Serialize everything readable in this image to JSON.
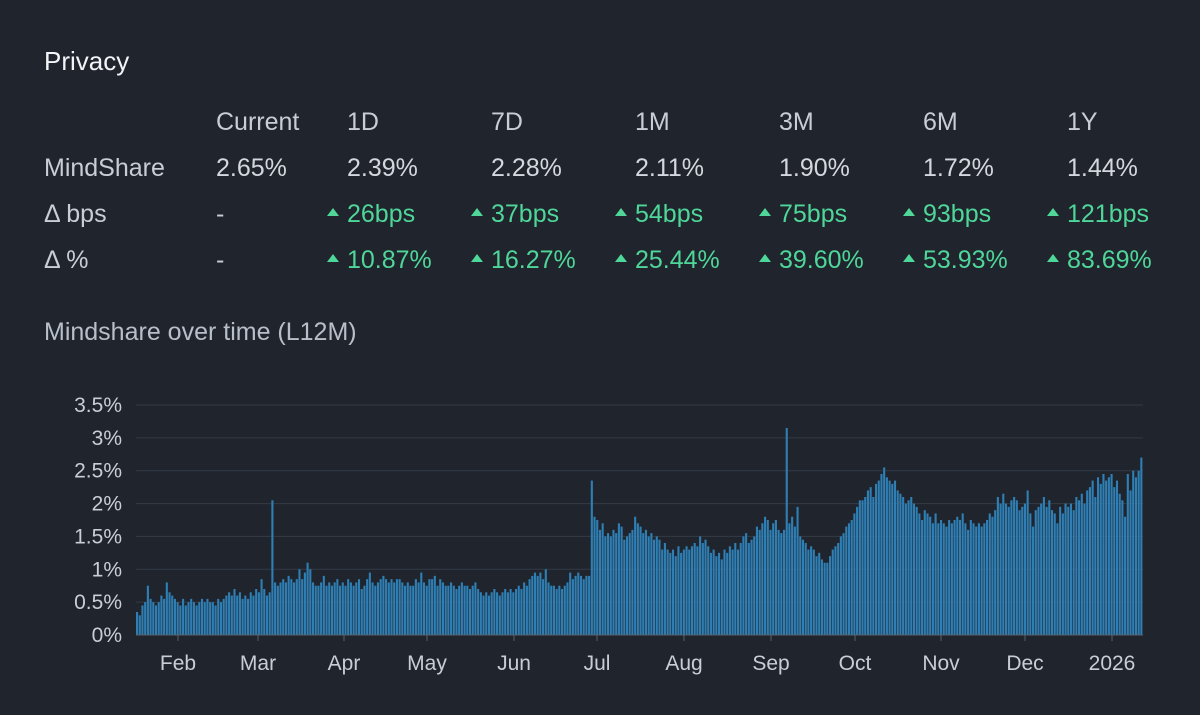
{
  "title": "Privacy",
  "table": {
    "columns": [
      "Current",
      "1D",
      "7D",
      "1M",
      "3M",
      "6M",
      "1Y"
    ],
    "rows": [
      {
        "label": "MindShare",
        "values": [
          "2.65%",
          "2.39%",
          "2.28%",
          "2.11%",
          "1.90%",
          "1.72%",
          "1.44%"
        ],
        "direction": [
          "",
          "",
          "",
          "",
          "",
          "",
          ""
        ]
      },
      {
        "label": "Δ bps",
        "values": [
          "-",
          "26bps",
          "37bps",
          "54bps",
          "75bps",
          "93bps",
          "121bps"
        ],
        "direction": [
          "",
          "up",
          "up",
          "up",
          "up",
          "up",
          "up"
        ]
      },
      {
        "label": "Δ %",
        "values": [
          "-",
          "10.87%",
          "16.27%",
          "25.44%",
          "39.60%",
          "53.93%",
          "83.69%"
        ],
        "direction": [
          "",
          "up",
          "up",
          "up",
          "up",
          "up",
          "up"
        ]
      }
    ],
    "up_color": "#4fd699"
  },
  "chart_title": "Mindshare over time (L12M)",
  "chart_data": {
    "type": "bar",
    "title": "Mindshare over time (L12M)",
    "xlabel": "",
    "ylabel": "",
    "ylim": [
      0,
      3.5
    ],
    "y_ticks": [
      "0%",
      "0.5%",
      "1%",
      "1.5%",
      "2%",
      "2.5%",
      "3%",
      "3.5%"
    ],
    "x_ticks": [
      "Feb",
      "Mar",
      "Apr",
      "May",
      "Jun",
      "Jul",
      "Aug",
      "Sep",
      "Oct",
      "Nov",
      "Dec",
      "2026"
    ],
    "grid": true,
    "bar_color": "#2f7fb4",
    "interval": "daily",
    "series": [
      {
        "values": [
          0.35,
          0.3,
          0.45,
          0.5,
          0.75,
          0.55,
          0.5,
          0.45,
          0.5,
          0.6,
          0.55,
          0.8,
          0.65,
          0.6,
          0.55,
          0.5,
          0.45,
          0.55,
          0.45,
          0.5,
          0.55,
          0.5,
          0.45,
          0.5,
          0.55,
          0.5,
          0.55,
          0.5,
          0.5,
          0.45,
          0.55,
          0.5,
          0.55,
          0.6,
          0.65,
          0.6,
          0.7,
          0.6,
          0.65,
          0.55,
          0.6,
          0.55,
          0.65,
          0.6,
          0.7,
          0.65,
          0.85,
          0.7,
          0.6,
          0.65,
          2.05,
          0.8,
          0.75,
          0.8,
          0.85,
          0.8,
          0.9,
          0.85,
          0.8,
          0.85,
          1.0,
          0.85,
          0.95,
          1.1,
          1.0,
          0.8,
          0.75,
          0.75,
          0.8,
          0.9,
          0.75,
          0.8,
          0.75,
          0.8,
          0.85,
          0.75,
          0.8,
          0.75,
          0.85,
          0.8,
          0.75,
          0.8,
          0.85,
          0.7,
          0.75,
          0.85,
          0.95,
          0.8,
          0.75,
          0.8,
          0.85,
          0.9,
          0.85,
          0.8,
          0.85,
          0.8,
          0.85,
          0.85,
          0.8,
          0.75,
          0.8,
          0.75,
          0.75,
          0.85,
          0.8,
          0.95,
          0.8,
          0.75,
          0.85,
          0.85,
          0.9,
          0.75,
          0.85,
          0.8,
          0.75,
          0.75,
          0.8,
          0.75,
          0.7,
          0.75,
          0.8,
          0.75,
          0.75,
          0.7,
          0.75,
          0.8,
          0.7,
          0.65,
          0.6,
          0.65,
          0.6,
          0.65,
          0.7,
          0.65,
          0.6,
          0.65,
          0.7,
          0.65,
          0.7,
          0.65,
          0.7,
          0.75,
          0.7,
          0.8,
          0.75,
          0.85,
          0.9,
          0.95,
          0.9,
          0.95,
          0.85,
          1.0,
          0.8,
          0.75,
          0.75,
          0.7,
          0.75,
          0.7,
          0.75,
          0.8,
          0.95,
          0.85,
          0.9,
          0.95,
          0.9,
          0.85,
          0.9,
          0.9,
          2.35,
          1.8,
          1.75,
          1.6,
          1.7,
          1.5,
          1.55,
          1.5,
          1.6,
          1.55,
          1.7,
          1.65,
          1.45,
          1.5,
          1.55,
          1.6,
          1.8,
          1.7,
          1.65,
          1.55,
          1.6,
          1.5,
          1.55,
          1.45,
          1.5,
          1.45,
          1.3,
          1.4,
          1.3,
          1.25,
          1.3,
          1.2,
          1.35,
          1.25,
          1.3,
          1.35,
          1.3,
          1.35,
          1.4,
          1.35,
          1.5,
          1.4,
          1.45,
          1.35,
          1.25,
          1.3,
          1.2,
          1.25,
          1.15,
          1.3,
          1.25,
          1.35,
          1.3,
          1.4,
          1.3,
          1.4,
          1.5,
          1.55,
          1.4,
          1.45,
          1.5,
          1.65,
          1.6,
          1.7,
          1.8,
          1.75,
          1.6,
          1.7,
          1.75,
          1.6,
          1.55,
          1.6,
          3.15,
          1.7,
          1.8,
          1.65,
          1.95,
          1.5,
          1.45,
          1.4,
          1.3,
          1.35,
          1.3,
          1.2,
          1.25,
          1.15,
          1.1,
          1.1,
          1.2,
          1.3,
          1.35,
          1.4,
          1.5,
          1.55,
          1.65,
          1.7,
          1.75,
          1.85,
          1.95,
          2.05,
          2.05,
          2.1,
          2.2,
          2.25,
          2.1,
          2.3,
          2.35,
          2.45,
          2.55,
          2.4,
          2.35,
          2.3,
          2.35,
          2.2,
          2.15,
          2.1,
          2.0,
          2.05,
          2.1,
          2.0,
          1.95,
          1.85,
          1.75,
          1.9,
          1.85,
          1.8,
          1.7,
          1.85,
          1.7,
          1.75,
          1.7,
          1.65,
          1.75,
          1.7,
          1.75,
          1.8,
          1.75,
          1.85,
          1.7,
          1.6,
          1.75,
          1.7,
          1.65,
          1.7,
          1.65,
          1.7,
          1.75,
          1.85,
          1.8,
          1.9,
          2.1,
          2.0,
          2.15,
          2.0,
          1.95,
          2.05,
          2.1,
          2.05,
          1.9,
          1.95,
          2.0,
          2.2,
          1.85,
          1.65,
          1.9,
          1.95,
          2.0,
          2.1,
          1.95,
          2.05,
          1.9,
          1.85,
          1.7,
          1.95,
          1.85,
          2.0,
          1.95,
          2.0,
          1.9,
          2.1,
          2.05,
          2.15,
          2.0,
          2.2,
          2.25,
          2.35,
          2.1,
          2.4,
          2.3,
          2.45,
          2.35,
          2.4,
          2.45,
          2.25,
          2.35,
          2.15,
          2.05,
          1.8,
          2.45,
          2.2,
          2.5,
          2.4,
          2.5,
          2.7
        ]
      }
    ]
  }
}
